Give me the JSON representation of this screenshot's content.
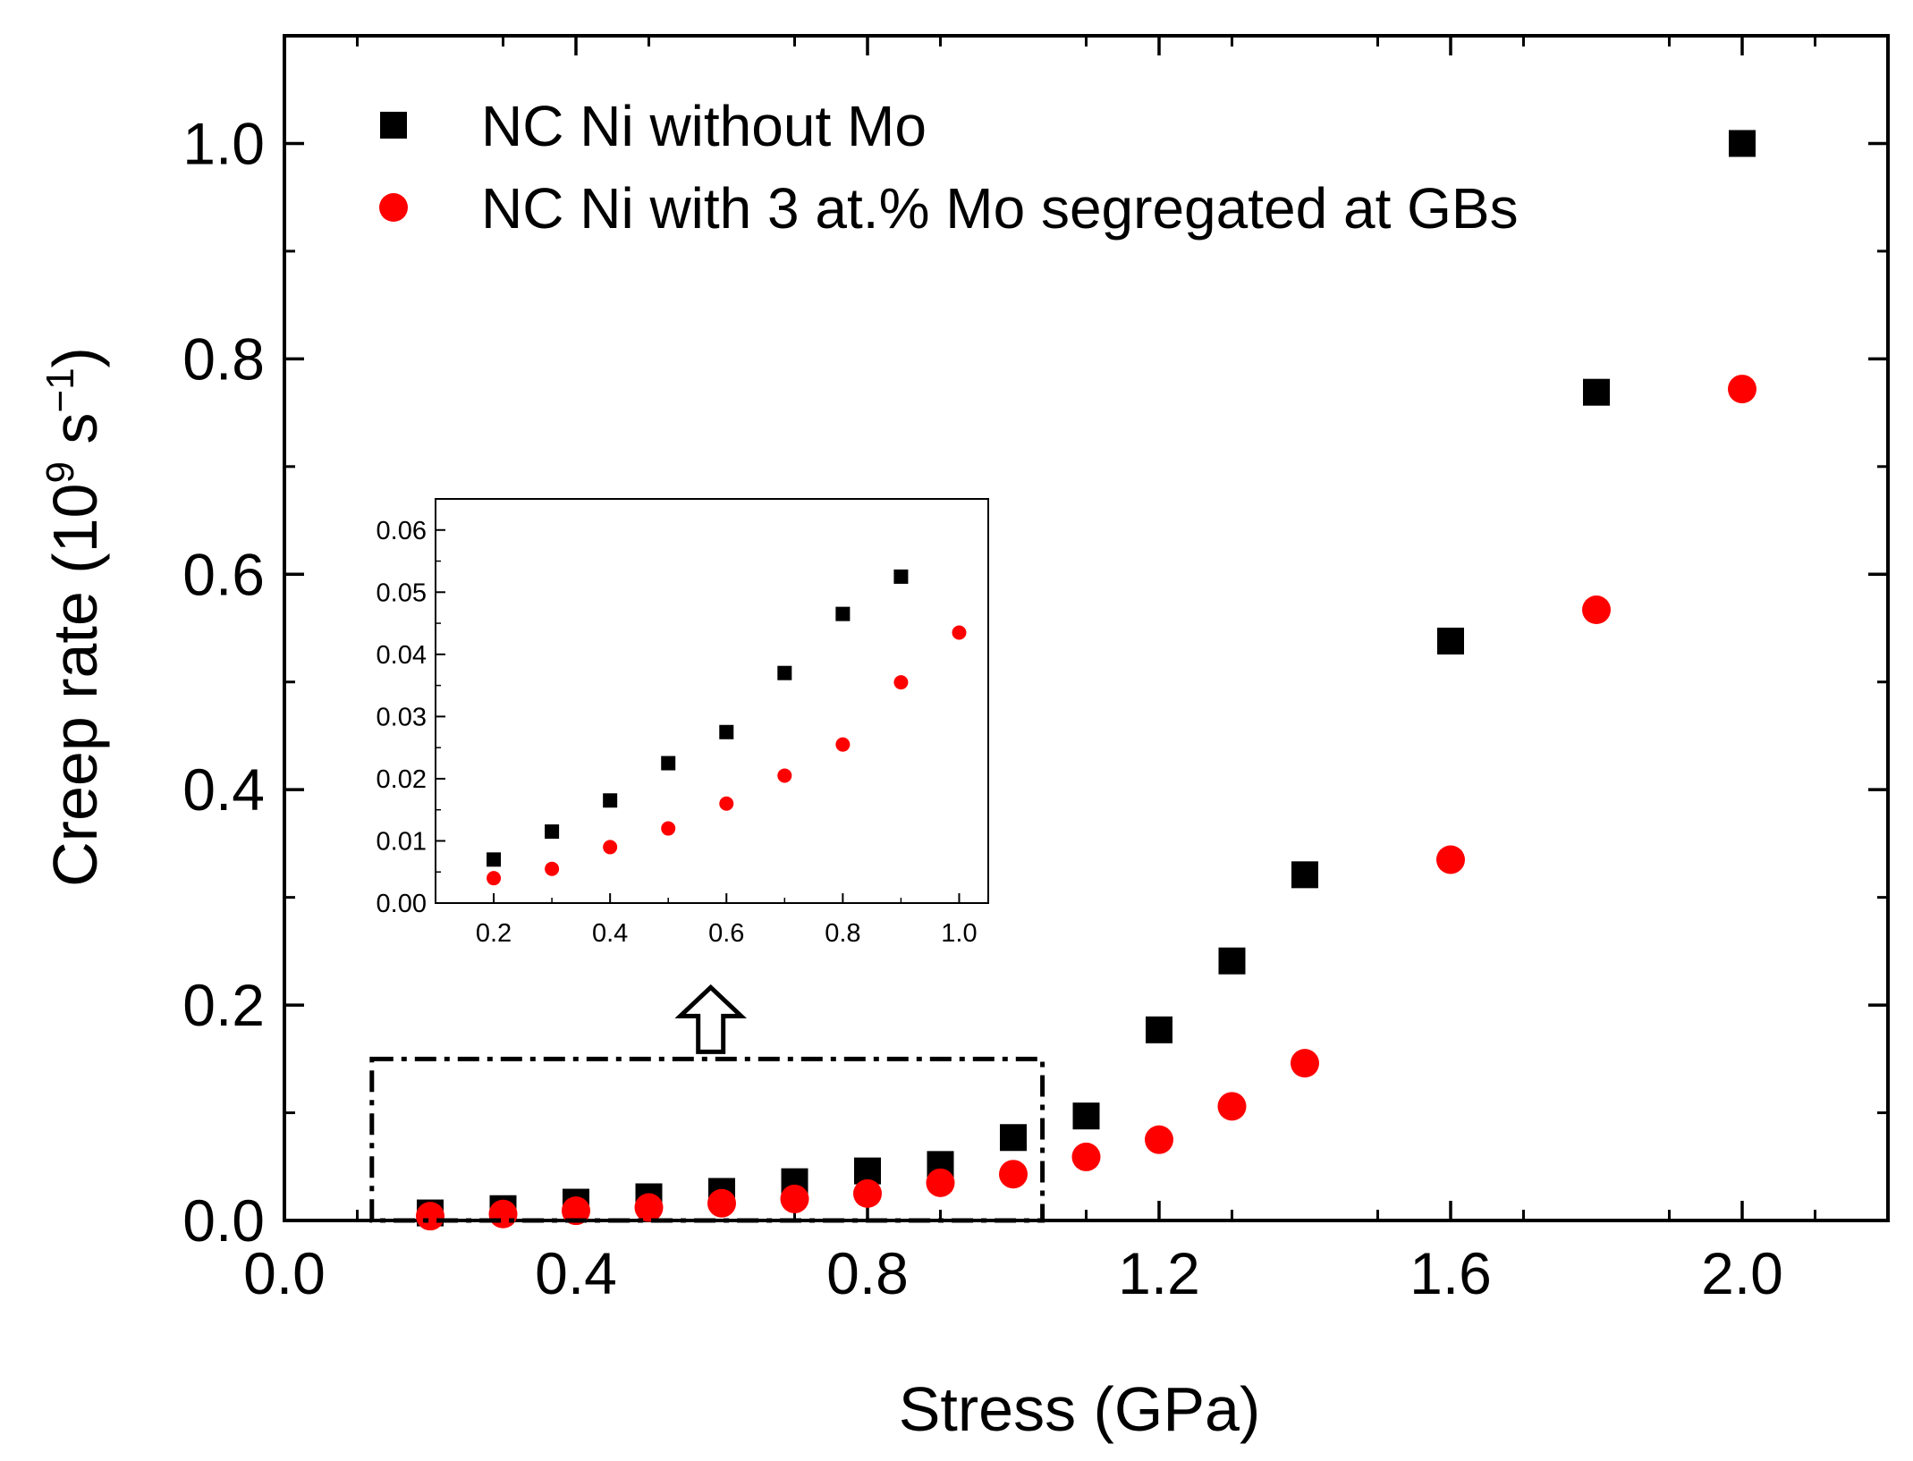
{
  "chart_data": {
    "type": "scatter",
    "title": "",
    "xlabel": "Stress (GPa)",
    "ylabel": {
      "prefix": "Creep rate (10",
      "sup1": "9",
      "mid": " s",
      "sup2": "−1",
      "suffix": ")"
    },
    "xlim": [
      0.0,
      2.2
    ],
    "ylim": [
      0.0,
      1.1
    ],
    "x_ticks": [
      0.0,
      0.4,
      0.8,
      1.2,
      1.6,
      2.0
    ],
    "x_tick_labels": [
      "0.0",
      "0.4",
      "0.8",
      "1.2",
      "1.6",
      "2.0"
    ],
    "y_ticks": [
      0.0,
      0.2,
      0.4,
      0.6,
      0.8,
      1.0
    ],
    "y_tick_labels": [
      "0.0",
      "0.2",
      "0.4",
      "0.6",
      "0.8",
      "1.0"
    ],
    "legend_position": "top-left",
    "series": [
      {
        "name": "NC Ni without Mo",
        "marker": "square",
        "color": "#000000",
        "x": [
          0.2,
          0.3,
          0.4,
          0.5,
          0.6,
          0.7,
          0.8,
          0.9,
          1.0,
          1.1,
          1.2,
          1.3,
          1.4,
          1.6,
          1.8,
          2.0
        ],
        "y": [
          0.007,
          0.011,
          0.017,
          0.022,
          0.027,
          0.036,
          0.046,
          0.052,
          0.077,
          0.097,
          0.177,
          0.241,
          0.321,
          0.538,
          0.769,
          1.0
        ]
      },
      {
        "name": "NC Ni with 3 at.% Mo segregated at GBs",
        "marker": "circle",
        "color": "#ff0000",
        "x": [
          0.2,
          0.3,
          0.4,
          0.5,
          0.6,
          0.7,
          0.8,
          0.9,
          1.0,
          1.1,
          1.2,
          1.3,
          1.4,
          1.6,
          1.8,
          2.0
        ],
        "y": [
          0.004,
          0.006,
          0.009,
          0.012,
          0.016,
          0.02,
          0.025,
          0.035,
          0.043,
          0.059,
          0.075,
          0.106,
          0.146,
          0.335,
          0.567,
          0.772
        ]
      }
    ],
    "zoom_box": {
      "x_range": [
        0.12,
        1.04
      ],
      "y_range": [
        0.0,
        0.15
      ],
      "style": "dashed",
      "arrow": "up"
    },
    "inset": {
      "position": "middle-left",
      "xlim": [
        0.1,
        1.05
      ],
      "ylim": [
        0.0,
        0.065
      ],
      "x_ticks": [
        0.2,
        0.4,
        0.6,
        0.8,
        1.0
      ],
      "x_tick_labels": [
        "0.2",
        "0.4",
        "0.6",
        "0.8",
        "1.0"
      ],
      "y_ticks": [
        0.0,
        0.01,
        0.02,
        0.03,
        0.04,
        0.05,
        0.06
      ],
      "y_tick_labels": [
        "0.00",
        "0.01",
        "0.02",
        "0.03",
        "0.04",
        "0.05",
        "0.06"
      ],
      "series": [
        {
          "name": "NC Ni without Mo",
          "marker": "square",
          "color": "#000000",
          "x": [
            0.2,
            0.3,
            0.4,
            0.5,
            0.6,
            0.7,
            0.8,
            0.9
          ],
          "y": [
            0.007,
            0.0115,
            0.0165,
            0.0225,
            0.0275,
            0.037,
            0.0465,
            0.0525
          ]
        },
        {
          "name": "NC Ni with 3 at.% Mo segregated at GBs",
          "marker": "circle",
          "color": "#ff0000",
          "x": [
            0.2,
            0.3,
            0.4,
            0.5,
            0.6,
            0.7,
            0.8,
            0.9,
            1.0
          ],
          "y": [
            0.004,
            0.0055,
            0.009,
            0.012,
            0.016,
            0.0205,
            0.0255,
            0.0355,
            0.0435
          ]
        }
      ]
    }
  }
}
